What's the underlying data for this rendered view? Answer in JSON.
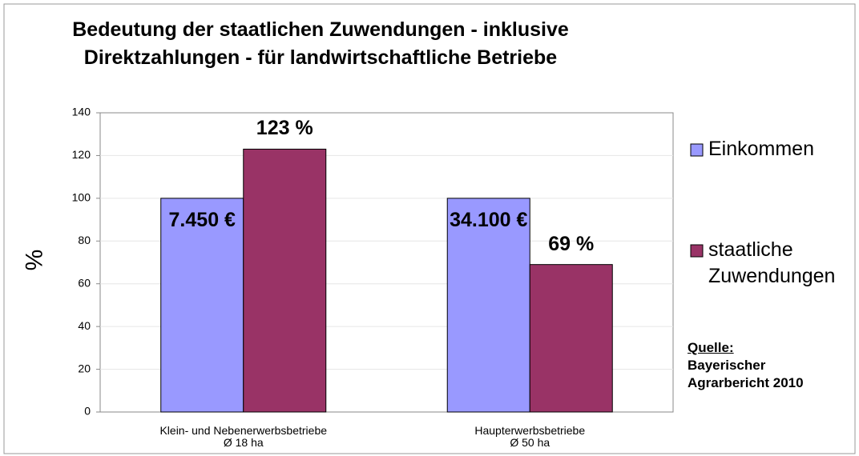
{
  "chart_data": {
    "type": "bar",
    "title": "Bedeutung der staatlichen Zuwendungen - inklusive\nDirektzahlungen - für landwirtschaftliche Betriebe",
    "y_label": "%",
    "categories": [
      "Klein- und Nebenerwerbsbetriebe\nØ 18 ha",
      "Haupterwerbsbetriebe\nØ 50 ha"
    ],
    "series": [
      {
        "name": "Einkommen",
        "color": "#9999ff",
        "values": [
          100,
          100
        ],
        "annotations": [
          "7.450 €",
          "34.100 €"
        ]
      },
      {
        "name": "staatliche Zuwendungen",
        "color": "#993366",
        "values": [
          123,
          69
        ],
        "value_labels": [
          "123 %",
          "69 %"
        ]
      }
    ],
    "ylim": [
      0,
      140
    ],
    "yticks": [
      0,
      20,
      40,
      60,
      80,
      100,
      120,
      140
    ],
    "grid": true,
    "legend": "right",
    "source": {
      "label": "Quelle:",
      "text": "Bayerischer Agrarbericht 2010"
    }
  }
}
